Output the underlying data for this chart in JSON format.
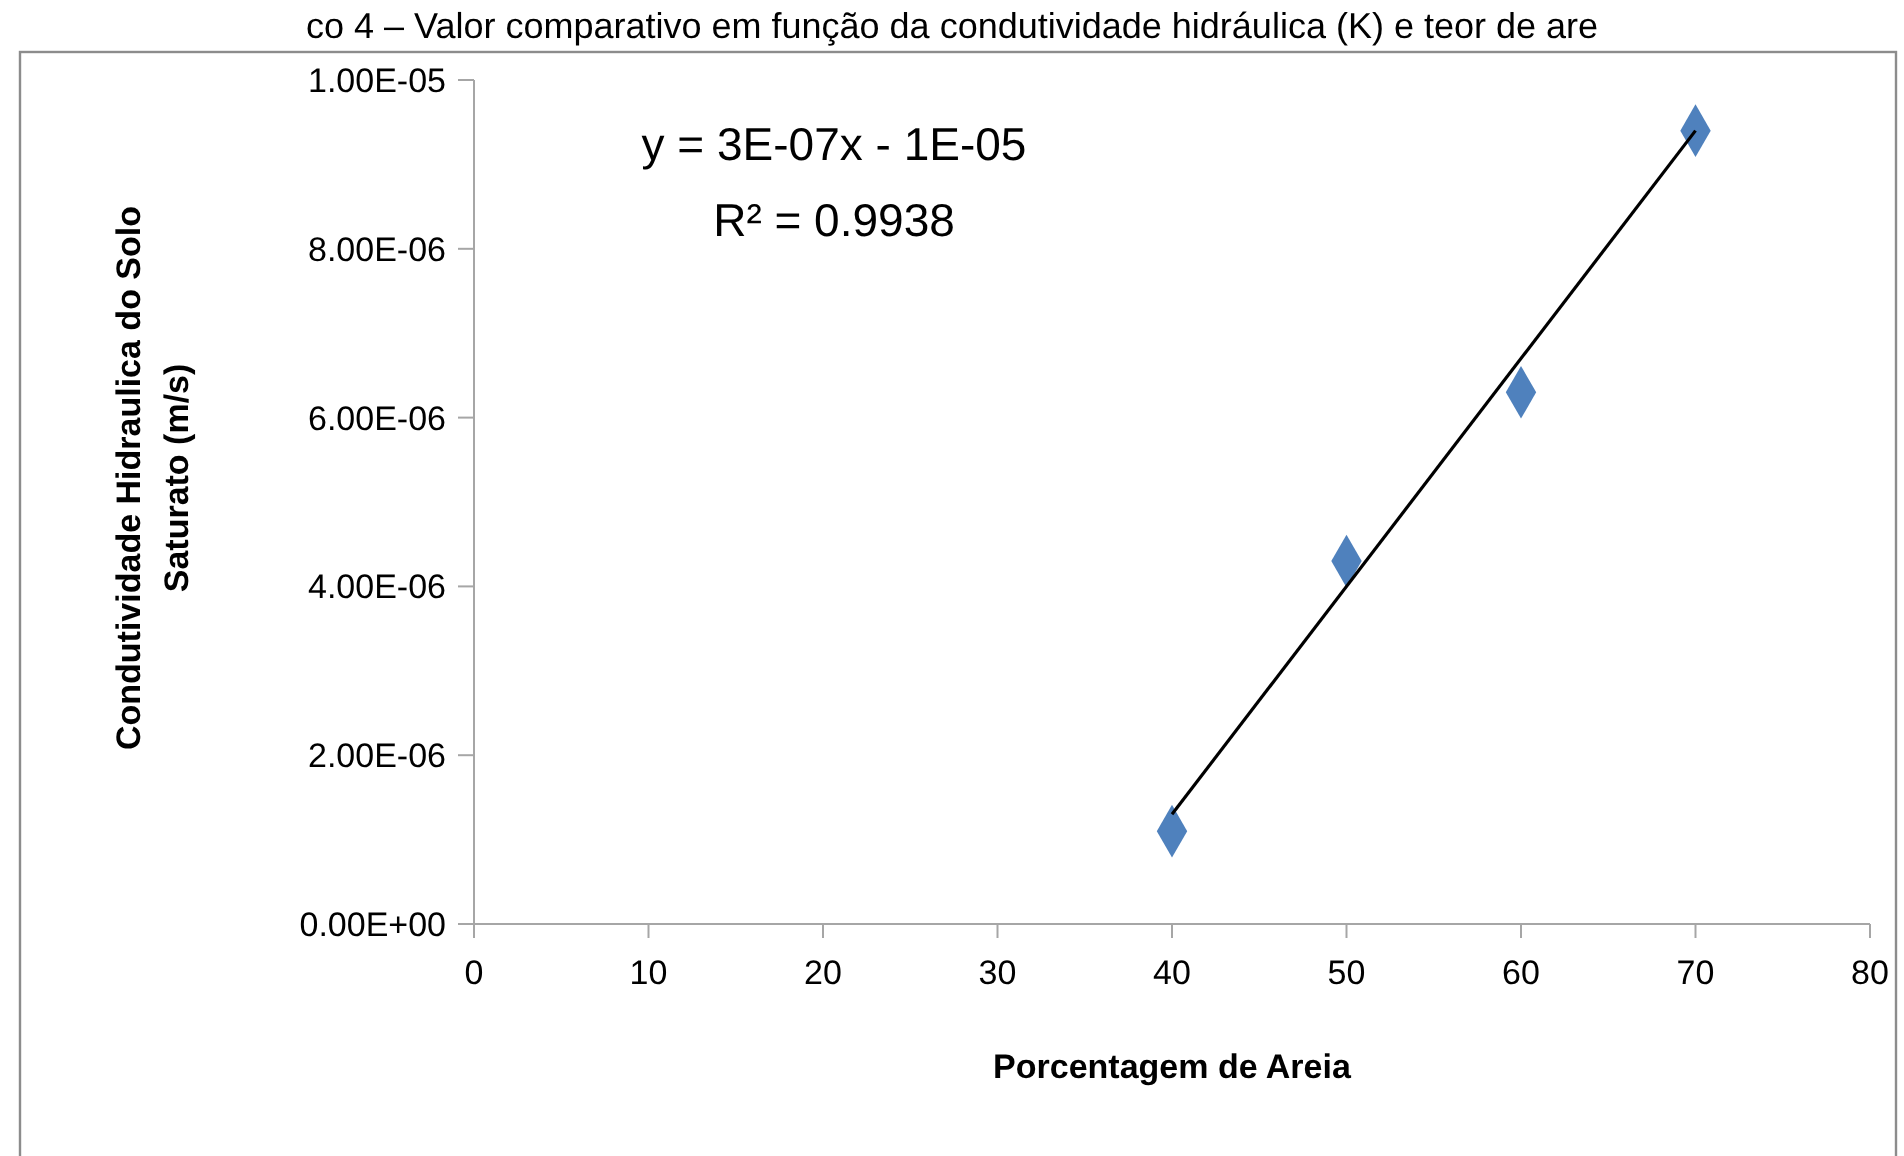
{
  "chart_data": {
    "type": "scatter",
    "title": "co 4 – Valor comparativo em função da condutividade hidráulica (K) e teor de are",
    "xlabel": "Porcentagem de Areia",
    "ylabel": "Condutividade Hidraulica  do Solo Saturato (m/s)",
    "annotations": [
      "y = 3E-07x - 1E-05",
      "R² = 0.9938"
    ],
    "series": [
      {
        "type": "scatter",
        "color": "#4f81bd",
        "x": [
          40,
          50,
          60,
          70
        ],
        "values": [
          1.1e-06,
          4.3e-06,
          6.3e-06,
          9.4e-06
        ],
        "marker": "diamond"
      },
      {
        "type": "line",
        "color": "#000000",
        "x": [
          40,
          70
        ],
        "values": [
          1.3e-06,
          9.4e-06
        ],
        "marker": "none",
        "line_style": "solid"
      }
    ],
    "xlim": [
      0,
      80
    ],
    "xticks": [
      0,
      10,
      20,
      30,
      40,
      50,
      60,
      70,
      80
    ],
    "ylim": [
      0,
      1e-05
    ],
    "yticks": [
      {
        "value": 0,
        "label": "0.00E+00"
      },
      {
        "value": 2e-06,
        "label": "2.00E-06"
      },
      {
        "value": 4e-06,
        "label": "4.00E-06"
      },
      {
        "value": 6e-06,
        "label": "6.00E-06"
      },
      {
        "value": 8e-06,
        "label": "8.00E-06"
      },
      {
        "value": 1e-05,
        "label": "1.00E-05"
      }
    ],
    "grid": false
  }
}
